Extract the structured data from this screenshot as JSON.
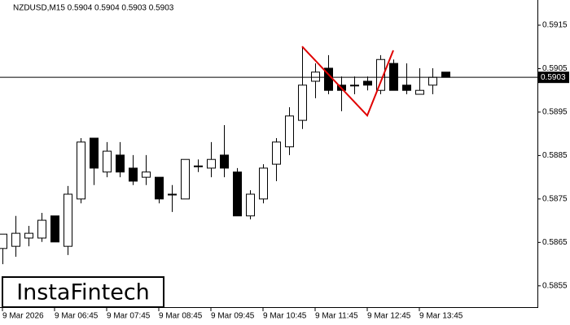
{
  "chart_data": {
    "type": "candlestick",
    "title": "NZDUSD,M15  0.5904 0.5904 0.5903 0.5903",
    "watermark": "InstaFintech",
    "categories": [
      "9 Mar 2026",
      null,
      null,
      null,
      "9 Mar 06:45",
      null,
      null,
      null,
      "9 Mar 07:45",
      null,
      null,
      null,
      "9 Mar 08:45",
      null,
      null,
      null,
      "9 Mar 09:45",
      null,
      null,
      null,
      "9 Mar 10:45",
      null,
      null,
      null,
      "9 Mar 11:45",
      null,
      null,
      null,
      "9 Mar 12:45",
      null,
      null,
      null,
      "9 Mar 13:45",
      null,
      null
    ],
    "open": [
      0.58636,
      0.58641,
      0.5866,
      0.5866,
      0.58711,
      0.58641,
      0.5875,
      0.5889,
      0.58812,
      0.58851,
      0.58821,
      0.588,
      0.588,
      0.58761,
      0.5875,
      0.58826,
      0.58821,
      0.58851,
      0.58812,
      0.58711,
      0.5875,
      0.5883,
      0.5887,
      0.58931,
      0.59021,
      0.59051,
      0.59012,
      0.59012,
      0.59021,
      0.59,
      0.59062,
      0.59012,
      0.58991,
      0.59012,
      0.59042
    ],
    "high": [
      0.58669,
      0.58711,
      0.58688,
      0.58718,
      0.58711,
      0.5878,
      0.5889,
      0.5889,
      0.58881,
      0.58881,
      0.58851,
      0.58851,
      0.588,
      0.58782,
      0.58841,
      0.58841,
      0.58881,
      0.5892,
      0.58821,
      0.5877,
      0.5883,
      0.5889,
      0.58961,
      0.59101,
      0.59062,
      0.59081,
      0.59032,
      0.59032,
      0.59032,
      0.59081,
      0.59071,
      0.59062,
      0.59051,
      0.59051,
      0.59042
    ],
    "low": [
      0.586,
      0.58617,
      0.58641,
      0.58651,
      0.58651,
      0.58621,
      0.5874,
      0.58782,
      0.588,
      0.588,
      0.58782,
      0.58782,
      0.5874,
      0.5872,
      0.5875,
      0.58812,
      0.588,
      0.588,
      0.58711,
      0.58703,
      0.5874,
      0.58791,
      0.58851,
      0.58911,
      0.58982,
      0.58991,
      0.58952,
      0.58991,
      0.59,
      0.58991,
      0.59,
      0.58991,
      0.58991,
      0.58991,
      0.5903
    ],
    "close": [
      0.58669,
      0.58671,
      0.58671,
      0.58701,
      0.58651,
      0.58761,
      0.58881,
      0.58821,
      0.5886,
      0.58812,
      0.58791,
      0.58812,
      0.5875,
      0.58761,
      0.58841,
      0.58826,
      0.58841,
      0.58821,
      0.58711,
      0.58761,
      0.58821,
      0.58881,
      0.58941,
      0.59012,
      0.59042,
      0.59,
      0.59,
      0.59012,
      0.59012,
      0.59071,
      0.59,
      0.59,
      0.59,
      0.5903,
      0.5903
    ],
    "up_color": "#ffffff",
    "down_color": "#000000",
    "price_line": 0.5903,
    "pattern": {
      "color": "#e00000",
      "index": [
        23,
        28,
        30
      ],
      "values": [
        0.59101,
        0.58942,
        0.59092
      ]
    },
    "ylim": [
      0.58501,
      0.59208
    ],
    "yticks": [
      0.5915,
      0.5905,
      0.5895,
      0.5885,
      0.5875,
      0.5865,
      0.5855
    ]
  }
}
